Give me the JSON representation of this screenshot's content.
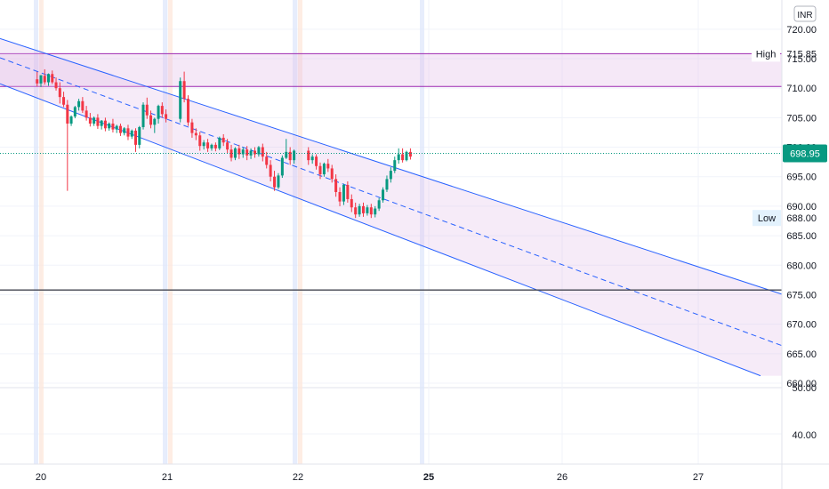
{
  "chart_data": {
    "type": "candlestick",
    "currency": "INR",
    "y_axis": {
      "ticks": [
        "720.00",
        "715.00",
        "710.00",
        "705.00",
        "700.00",
        "695.00",
        "690.00",
        "685.00",
        "680.00",
        "675.00",
        "670.00",
        "665.00",
        "660.00"
      ],
      "lower_pane_ticks": [
        "50.00",
        "40.00"
      ],
      "ylim": [
        657,
        722
      ]
    },
    "x_axis": {
      "ticks": [
        "20",
        "21",
        "22",
        "25",
        "26",
        "27"
      ],
      "bold_ticks": [
        "25"
      ]
    },
    "last_price": "698.95",
    "high": {
      "label": "High",
      "value": "715.85"
    },
    "low": {
      "label": "Low",
      "value": "688.00"
    },
    "high_zone": {
      "top": 715.85,
      "bottom": 710.3
    },
    "horizontal_line": 675.8,
    "channel": {
      "upper": {
        "start": [
          "19.95",
          716.5
        ],
        "end": [
          "27.6",
          675.2
        ]
      },
      "middle": {
        "start": [
          "19.95",
          713.0
        ],
        "end": [
          "27.6",
          666.5
        ]
      },
      "lower": {
        "start": [
          "19.95",
          708.5
        ],
        "end": [
          "27.6",
          660.0
        ]
      }
    },
    "candles": [
      {
        "x": 19.97,
        "o": 711.5,
        "h": 712.8,
        "c": 710.8,
        "l": 710.3
      },
      {
        "x": 20.0,
        "o": 710.8,
        "h": 712.2,
        "c": 712.2,
        "l": 710.2
      },
      {
        "x": 20.03,
        "o": 712.1,
        "h": 713.2,
        "c": 711.0,
        "l": 710.6
      },
      {
        "x": 20.06,
        "o": 711.0,
        "h": 712.5,
        "c": 712.4,
        "l": 710.4
      },
      {
        "x": 20.09,
        "o": 712.4,
        "h": 713.0,
        "c": 711.0,
        "l": 710.7
      },
      {
        "x": 20.12,
        "o": 711.0,
        "h": 711.8,
        "c": 710.0,
        "l": 709.6
      },
      {
        "x": 20.15,
        "o": 710.0,
        "h": 711.0,
        "c": 708.5,
        "l": 707.4
      },
      {
        "x": 20.18,
        "o": 708.5,
        "h": 709.4,
        "c": 707.2,
        "l": 706.8
      },
      {
        "x": 20.21,
        "o": 707.2,
        "h": 708.0,
        "c": 704.0,
        "l": 692.6
      },
      {
        "x": 20.24,
        "o": 704.0,
        "h": 705.4,
        "c": 705.2,
        "l": 703.6
      },
      {
        "x": 20.27,
        "o": 705.2,
        "h": 707.0,
        "c": 706.8,
        "l": 704.9
      },
      {
        "x": 20.3,
        "o": 706.8,
        "h": 708.2,
        "c": 707.8,
        "l": 706.2
      },
      {
        "x": 20.33,
        "o": 707.8,
        "h": 708.5,
        "c": 706.2,
        "l": 705.8
      },
      {
        "x": 20.36,
        "o": 706.2,
        "h": 707.0,
        "c": 705.0,
        "l": 704.5
      },
      {
        "x": 20.39,
        "o": 705.0,
        "h": 705.8,
        "c": 704.0,
        "l": 703.5
      },
      {
        "x": 20.42,
        "o": 704.0,
        "h": 705.2,
        "c": 705.0,
        "l": 703.6
      },
      {
        "x": 20.45,
        "o": 705.0,
        "h": 705.6,
        "c": 703.6,
        "l": 703.1
      },
      {
        "x": 20.48,
        "o": 703.6,
        "h": 704.6,
        "c": 704.5,
        "l": 703.0
      },
      {
        "x": 20.51,
        "o": 704.5,
        "h": 705.0,
        "c": 703.2,
        "l": 702.7
      },
      {
        "x": 20.54,
        "o": 703.2,
        "h": 704.2,
        "c": 704.0,
        "l": 702.8
      },
      {
        "x": 20.57,
        "o": 704.0,
        "h": 704.8,
        "c": 703.0,
        "l": 702.5
      },
      {
        "x": 20.6,
        "o": 703.0,
        "h": 703.8,
        "c": 703.6,
        "l": 702.4
      },
      {
        "x": 20.63,
        "o": 703.6,
        "h": 704.0,
        "c": 702.4,
        "l": 701.9
      },
      {
        "x": 20.66,
        "o": 702.4,
        "h": 703.4,
        "c": 703.2,
        "l": 702.0
      },
      {
        "x": 20.69,
        "o": 703.2,
        "h": 703.8,
        "c": 701.8,
        "l": 701.2
      },
      {
        "x": 20.72,
        "o": 701.8,
        "h": 703.0,
        "c": 702.8,
        "l": 701.4
      },
      {
        "x": 20.75,
        "o": 702.8,
        "h": 703.2,
        "c": 700.4,
        "l": 699.2
      },
      {
        "x": 20.78,
        "o": 700.4,
        "h": 703.6,
        "c": 703.4,
        "l": 699.8
      },
      {
        "x": 20.81,
        "o": 703.4,
        "h": 707.6,
        "c": 707.2,
        "l": 703.0
      },
      {
        "x": 20.84,
        "o": 707.2,
        "h": 708.4,
        "c": 705.4,
        "l": 704.8
      },
      {
        "x": 20.87,
        "o": 705.4,
        "h": 706.2,
        "c": 703.8,
        "l": 703.2
      },
      {
        "x": 20.9,
        "o": 703.8,
        "h": 705.0,
        "c": 704.8,
        "l": 702.4
      },
      {
        "x": 20.93,
        "o": 704.8,
        "h": 707.2,
        "c": 707.0,
        "l": 704.0
      },
      {
        "x": 20.96,
        "o": 707.0,
        "h": 707.6,
        "c": 705.6,
        "l": 705.0
      },
      {
        "x": 20.99,
        "o": 705.6,
        "h": 706.4,
        "c": 704.8,
        "l": 704.2
      },
      {
        "x": 21.1,
        "o": 704.8,
        "h": 711.8,
        "c": 711.2,
        "l": 704.2
      },
      {
        "x": 21.13,
        "o": 711.2,
        "h": 712.8,
        "c": 708.2,
        "l": 707.6
      },
      {
        "x": 21.16,
        "o": 708.2,
        "h": 708.8,
        "c": 704.2,
        "l": 703.6
      },
      {
        "x": 21.19,
        "o": 704.2,
        "h": 704.8,
        "c": 702.4,
        "l": 701.6
      },
      {
        "x": 21.22,
        "o": 702.4,
        "h": 703.2,
        "c": 702.0,
        "l": 701.2
      },
      {
        "x": 21.25,
        "o": 702.0,
        "h": 702.6,
        "c": 700.2,
        "l": 699.4
      },
      {
        "x": 21.28,
        "o": 700.2,
        "h": 701.2,
        "c": 700.8,
        "l": 699.6
      },
      {
        "x": 21.31,
        "o": 700.8,
        "h": 701.4,
        "c": 699.8,
        "l": 699.2
      },
      {
        "x": 21.34,
        "o": 699.8,
        "h": 700.6,
        "c": 700.4,
        "l": 699.4
      },
      {
        "x": 21.37,
        "o": 700.4,
        "h": 700.8,
        "c": 699.8,
        "l": 699.3
      },
      {
        "x": 21.4,
        "o": 699.8,
        "h": 701.8,
        "c": 701.6,
        "l": 699.5
      },
      {
        "x": 21.43,
        "o": 701.6,
        "h": 702.2,
        "c": 700.8,
        "l": 700.2
      },
      {
        "x": 21.46,
        "o": 700.8,
        "h": 701.4,
        "c": 699.6,
        "l": 699.0
      },
      {
        "x": 21.49,
        "o": 699.6,
        "h": 700.4,
        "c": 698.2,
        "l": 697.6
      },
      {
        "x": 21.52,
        "o": 698.2,
        "h": 700.0,
        "c": 699.8,
        "l": 697.8
      },
      {
        "x": 21.55,
        "o": 699.8,
        "h": 700.4,
        "c": 698.8,
        "l": 698.0
      },
      {
        "x": 21.58,
        "o": 698.8,
        "h": 700.0,
        "c": 699.6,
        "l": 698.2
      },
      {
        "x": 21.61,
        "o": 699.6,
        "h": 700.2,
        "c": 698.6,
        "l": 697.8
      },
      {
        "x": 21.64,
        "o": 698.6,
        "h": 699.8,
        "c": 699.4,
        "l": 698.0
      },
      {
        "x": 21.67,
        "o": 699.4,
        "h": 700.0,
        "c": 698.8,
        "l": 698.2
      },
      {
        "x": 21.7,
        "o": 698.8,
        "h": 700.2,
        "c": 700.0,
        "l": 698.4
      },
      {
        "x": 21.73,
        "o": 700.0,
        "h": 700.6,
        "c": 698.4,
        "l": 697.6
      },
      {
        "x": 21.76,
        "o": 698.4,
        "h": 699.2,
        "c": 697.0,
        "l": 696.4
      },
      {
        "x": 21.79,
        "o": 697.0,
        "h": 697.8,
        "c": 695.0,
        "l": 694.2
      },
      {
        "x": 21.82,
        "o": 695.0,
        "h": 696.0,
        "c": 693.2,
        "l": 692.6
      },
      {
        "x": 21.85,
        "o": 693.2,
        "h": 695.6,
        "c": 695.2,
        "l": 692.9
      },
      {
        "x": 21.88,
        "o": 695.2,
        "h": 698.6,
        "c": 698.2,
        "l": 694.8
      },
      {
        "x": 21.91,
        "o": 698.2,
        "h": 701.4,
        "c": 699.2,
        "l": 698.0
      },
      {
        "x": 21.94,
        "o": 699.2,
        "h": 700.0,
        "c": 697.8,
        "l": 697.0
      },
      {
        "x": 21.97,
        "o": 697.8,
        "h": 699.6,
        "c": 699.4,
        "l": 697.2
      },
      {
        "x": 22.08,
        "o": 699.4,
        "h": 700.0,
        "c": 697.8,
        "l": 697.0
      },
      {
        "x": 22.11,
        "o": 697.8,
        "h": 698.8,
        "c": 698.4,
        "l": 697.2
      },
      {
        "x": 22.14,
        "o": 698.4,
        "h": 698.8,
        "c": 696.8,
        "l": 696.2
      },
      {
        "x": 22.17,
        "o": 696.8,
        "h": 697.4,
        "c": 695.4,
        "l": 694.6
      },
      {
        "x": 22.2,
        "o": 695.4,
        "h": 697.4,
        "c": 697.2,
        "l": 695.0
      },
      {
        "x": 22.23,
        "o": 697.2,
        "h": 698.0,
        "c": 696.4,
        "l": 695.8
      },
      {
        "x": 22.26,
        "o": 696.4,
        "h": 697.0,
        "c": 694.6,
        "l": 694.0
      },
      {
        "x": 22.29,
        "o": 694.6,
        "h": 695.4,
        "c": 692.4,
        "l": 691.6
      },
      {
        "x": 22.32,
        "o": 692.4,
        "h": 693.2,
        "c": 690.8,
        "l": 690.0
      },
      {
        "x": 22.35,
        "o": 690.8,
        "h": 693.8,
        "c": 693.6,
        "l": 690.2
      },
      {
        "x": 22.38,
        "o": 693.6,
        "h": 694.2,
        "c": 691.2,
        "l": 690.6
      },
      {
        "x": 22.41,
        "o": 691.2,
        "h": 692.0,
        "c": 689.8,
        "l": 689.0
      },
      {
        "x": 22.44,
        "o": 689.8,
        "h": 690.6,
        "c": 688.6,
        "l": 688.0
      },
      {
        "x": 22.47,
        "o": 688.6,
        "h": 690.4,
        "c": 690.0,
        "l": 688.2
      },
      {
        "x": 22.5,
        "o": 690.0,
        "h": 690.6,
        "c": 688.8,
        "l": 688.2
      },
      {
        "x": 22.53,
        "o": 688.8,
        "h": 690.2,
        "c": 689.8,
        "l": 688.4
      },
      {
        "x": 22.56,
        "o": 689.8,
        "h": 690.4,
        "c": 688.6,
        "l": 688.0
      },
      {
        "x": 22.59,
        "o": 688.6,
        "h": 690.0,
        "c": 689.6,
        "l": 688.1
      },
      {
        "x": 22.62,
        "o": 689.6,
        "h": 691.4,
        "c": 691.0,
        "l": 689.2
      },
      {
        "x": 22.65,
        "o": 691.0,
        "h": 693.2,
        "c": 692.8,
        "l": 690.6
      },
      {
        "x": 22.68,
        "o": 692.8,
        "h": 695.2,
        "c": 694.6,
        "l": 692.4
      },
      {
        "x": 22.71,
        "o": 694.6,
        "h": 696.6,
        "c": 696.0,
        "l": 694.0
      },
      {
        "x": 22.74,
        "o": 696.0,
        "h": 698.4,
        "c": 697.8,
        "l": 695.6
      },
      {
        "x": 22.77,
        "o": 697.8,
        "h": 699.8,
        "c": 698.8,
        "l": 697.2
      },
      {
        "x": 22.8,
        "o": 698.8,
        "h": 699.8,
        "c": 697.8,
        "l": 697.4
      },
      {
        "x": 22.83,
        "o": 697.8,
        "h": 699.4,
        "c": 699.2,
        "l": 697.6
      },
      {
        "x": 22.86,
        "o": 699.2,
        "h": 699.8,
        "c": 698.4,
        "l": 697.9
      }
    ]
  }
}
